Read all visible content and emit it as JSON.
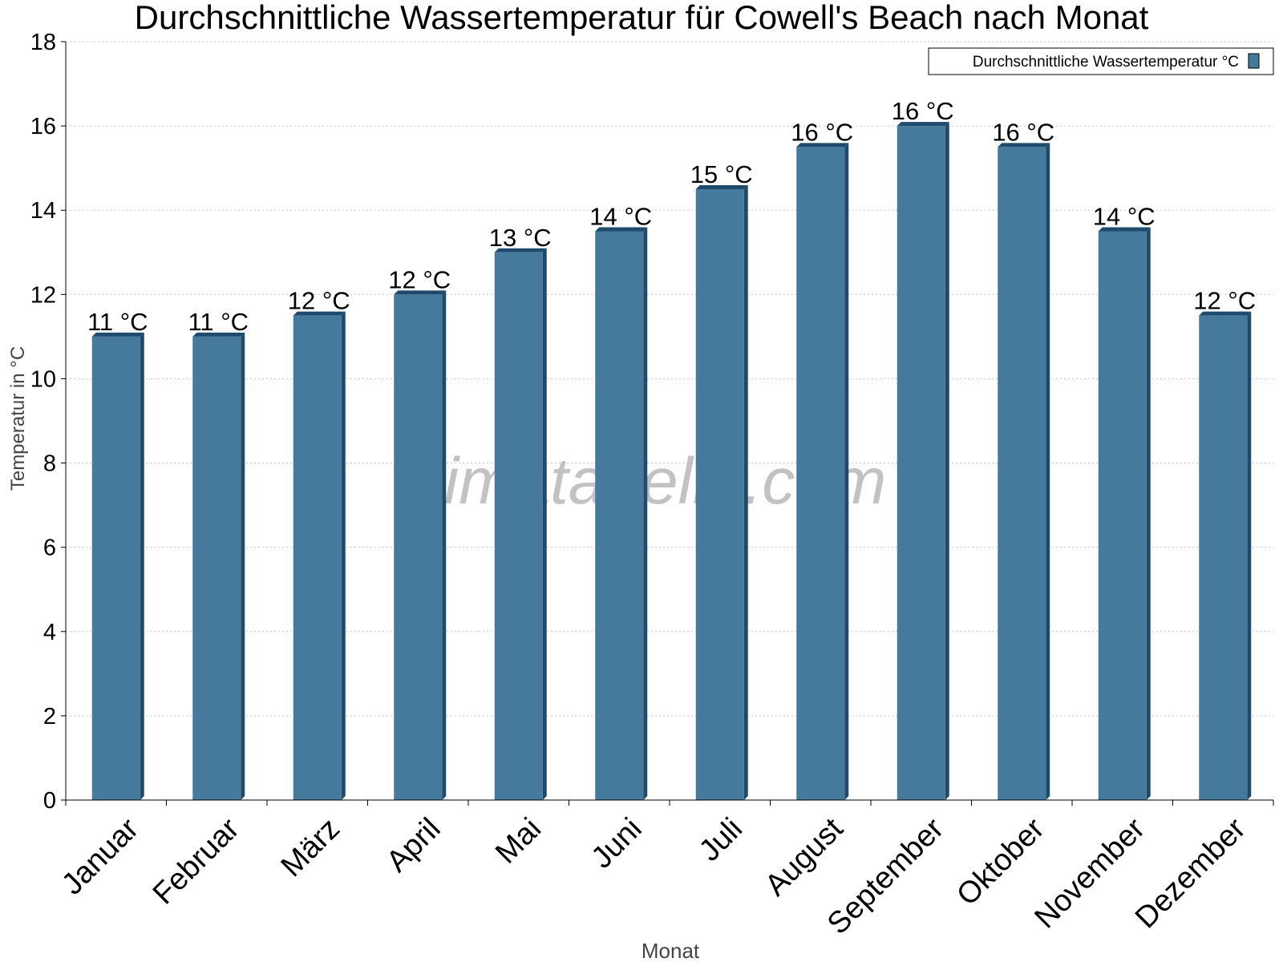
{
  "chart_data": {
    "type": "bar",
    "title": "Durchschnittliche Wassertemperatur für Cowell's Beach nach Monat",
    "xlabel": "Monat",
    "ylabel": "Temperatur in °C",
    "categories": [
      "Januar",
      "Februar",
      "März",
      "April",
      "Mai",
      "Juni",
      "Juli",
      "August",
      "September",
      "Oktober",
      "November",
      "Dezember"
    ],
    "series": [
      {
        "name": "Durchschnittliche Wassertemperatur °C",
        "values": [
          11,
          11,
          11.5,
          12,
          13,
          13.5,
          14.5,
          15.5,
          16,
          15.5,
          13.5,
          11.5
        ],
        "labels": [
          "11 °C",
          "11 °C",
          "12 °C",
          "12 °C",
          "13 °C",
          "14 °C",
          "15 °C",
          "16 °C",
          "16 °C",
          "16 °C",
          "14 °C",
          "12 °C"
        ],
        "color": "#467a9c",
        "side_color": "#1e4a6b"
      }
    ],
    "ylim": [
      0,
      18
    ],
    "yticks": [
      0,
      2,
      4,
      6,
      8,
      10,
      12,
      14,
      16,
      18
    ],
    "grid": true,
    "legend_position": "top-right",
    "watermark": "klimatabelle.com"
  }
}
